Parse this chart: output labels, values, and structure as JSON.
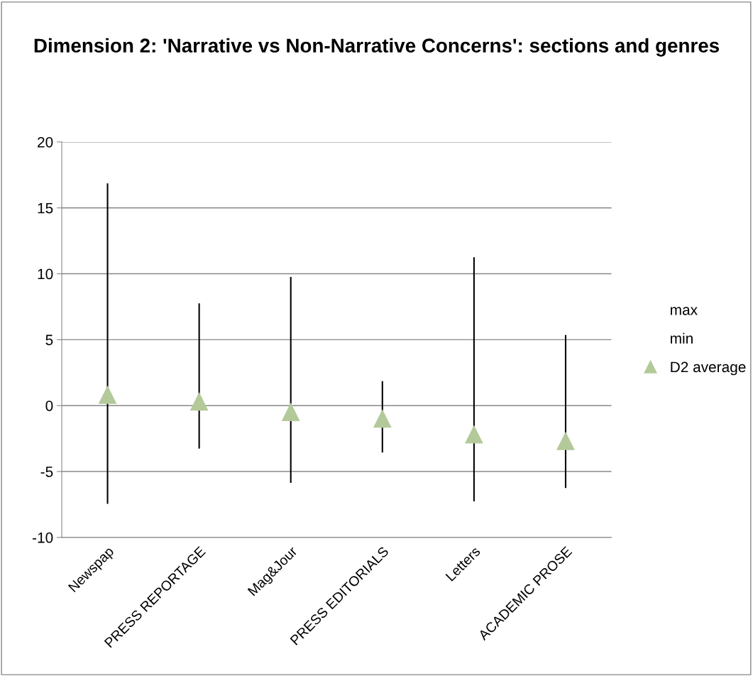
{
  "chart_data": {
    "type": "scatter",
    "title": "Dimension 2: 'Narrative vs Non-Narrative Concerns': sections and genres",
    "categories": [
      "Newspap",
      "PRESS REPORTAGE",
      "Mag&Jour",
      "PRESS EDITORIALS",
      "Letters",
      "ACADEMIC PROSE"
    ],
    "series": [
      {
        "name": "max",
        "marker": "none",
        "color": "#000000",
        "values": [
          null,
          null,
          null,
          null,
          null,
          null
        ]
      },
      {
        "name": "min",
        "marker": "none",
        "color": "#000000",
        "values": [
          null,
          null,
          null,
          null,
          null,
          null
        ]
      },
      {
        "name": "D2 average",
        "marker": "triangle",
        "color": "#b3c99a",
        "values": [
          0.8,
          0.3,
          -0.5,
          -1.0,
          -2.2,
          -2.7
        ],
        "errors": [
          [
            -7.4,
            16.8
          ],
          [
            -3.2,
            7.7
          ],
          [
            -5.8,
            9.7
          ],
          [
            -3.5,
            1.8
          ],
          [
            -7.2,
            11.2
          ],
          [
            -6.2,
            5.3
          ]
        ]
      }
    ],
    "ylim": [
      -10,
      20
    ],
    "yticks": [
      -10,
      -5,
      0,
      5,
      10,
      15,
      20
    ],
    "grid": "y",
    "legend": "right"
  }
}
